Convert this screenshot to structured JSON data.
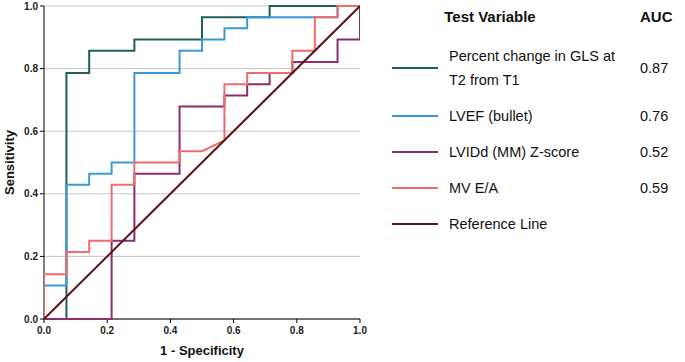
{
  "chart_data": {
    "type": "line",
    "x_label": "1 - Specificity",
    "y_label": "Sensitivity",
    "legend_header": [
      "Test Variable",
      "AUC"
    ],
    "legend": "right",
    "grid": true,
    "xlim": [
      0,
      1
    ],
    "ylim": [
      0,
      1
    ],
    "xticks": [
      {
        "value": 0,
        "label": "0.0"
      },
      {
        "value": 0.2,
        "label": "0.2"
      },
      {
        "value": 0.4,
        "label": "0.4"
      },
      {
        "value": 0.6,
        "label": "0.6"
      },
      {
        "value": 0.8,
        "label": "0.8"
      },
      {
        "value": 1,
        "label": "1.0"
      }
    ],
    "yticks": [
      {
        "value": 0,
        "label": "0.0"
      },
      {
        "value": 0.2,
        "label": "0.2"
      },
      {
        "value": 0.4,
        "label": "0.4"
      },
      {
        "value": 0.6,
        "label": "0.6"
      },
      {
        "value": 0.8,
        "label": "0.8"
      },
      {
        "value": 1,
        "label": "1.0"
      }
    ],
    "series": [
      {
        "name": "Percent change in GLS at T2 from T1",
        "color": "#1e5f5a",
        "auc": 0.87,
        "x": [
          0,
          0.071,
          0.071,
          0.143,
          0.143,
          0.286,
          0.286,
          0.5,
          0.5,
          0.714,
          0.714,
          1
        ],
        "values": [
          0,
          0,
          0.786,
          0.786,
          0.857,
          0.857,
          0.893,
          0.893,
          0.964,
          0.964,
          1,
          1
        ]
      },
      {
        "name": "LVEF (bullet)",
        "color": "#3a9ad9",
        "auc": 0.76,
        "x": [
          0,
          0,
          0.071,
          0.071,
          0.143,
          0.143,
          0.214,
          0.214,
          0.286,
          0.286,
          0.429,
          0.429,
          0.5,
          0.5,
          0.571,
          0.571,
          0.643,
          0.643,
          0.929,
          0.929,
          1
        ],
        "values": [
          0,
          0.107,
          0.107,
          0.429,
          0.429,
          0.464,
          0.464,
          0.5,
          0.5,
          0.786,
          0.786,
          0.857,
          0.857,
          0.893,
          0.893,
          0.929,
          0.929,
          0.964,
          0.964,
          1,
          1
        ]
      },
      {
        "name": "LVIDd (MM) Z-score",
        "color": "#8e2c6e",
        "auc": 0.52,
        "x": [
          0,
          0.214,
          0.214,
          0.286,
          0.286,
          0.429,
          0.429,
          0.571,
          0.571,
          0.643,
          0.643,
          0.714,
          0.714,
          0.786,
          0.786,
          0.929,
          0.929,
          1,
          1
        ],
        "values": [
          0,
          0,
          0.25,
          0.25,
          0.464,
          0.464,
          0.679,
          0.679,
          0.714,
          0.714,
          0.75,
          0.75,
          0.786,
          0.786,
          0.821,
          0.821,
          0.893,
          0.893,
          1
        ]
      },
      {
        "name": "MV E/A",
        "color": "#f26b6b",
        "auc": 0.59,
        "x": [
          0,
          0,
          0.071,
          0.071,
          0.143,
          0.143,
          0.214,
          0.214,
          0.286,
          0.286,
          0.429,
          0.429,
          0.5,
          0.571,
          0.571,
          0.643,
          0.643,
          0.786,
          0.786,
          0.857,
          0.857,
          0.929,
          0.929,
          1
        ],
        "values": [
          0,
          0.143,
          0.143,
          0.214,
          0.214,
          0.25,
          0.25,
          0.429,
          0.429,
          0.5,
          0.5,
          0.536,
          0.536,
          0.571,
          0.75,
          0.75,
          0.786,
          0.786,
          0.857,
          0.857,
          0.964,
          0.964,
          1,
          1
        ]
      },
      {
        "name": "Reference Line",
        "color": "#5c1414",
        "x": [
          0,
          1
        ],
        "values": [
          0,
          1
        ]
      }
    ]
  }
}
